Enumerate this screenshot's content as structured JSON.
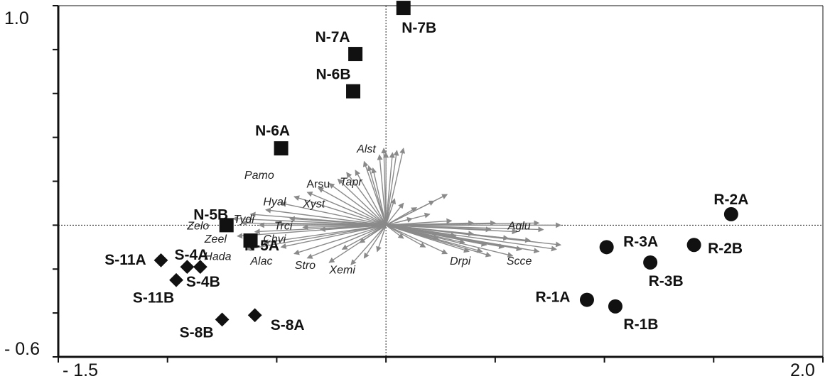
{
  "chart_data": {
    "type": "scatter",
    "title": "",
    "xlabel": "",
    "ylabel": "",
    "xlim": [
      -1.5,
      2.0
    ],
    "ylim": [
      -0.6,
      1.0
    ],
    "x_tick_labels": [
      "- 1.5",
      "2.0"
    ],
    "y_tick_labels": [
      "1.0",
      "- 0.6"
    ],
    "grid": false,
    "colors": {
      "axis": "#111111",
      "points": "#111111",
      "arrows": "#8a8a8a"
    },
    "groups": [
      {
        "marker": "square",
        "points": [
          {
            "label": "N-7B",
            "x": 0.08,
            "y": 0.99
          },
          {
            "label": "N-7A",
            "x": -0.14,
            "y": 0.78
          },
          {
            "label": "N-6B",
            "x": -0.15,
            "y": 0.61
          },
          {
            "label": "N-6A",
            "x": -0.48,
            "y": 0.35
          },
          {
            "label": "N-5B",
            "x": -0.73,
            "y": 0.0
          },
          {
            "label": "N-5A",
            "x": -0.62,
            "y": -0.07
          }
        ]
      },
      {
        "marker": "circle",
        "points": [
          {
            "label": "R-2A",
            "x": 1.58,
            "y": 0.05
          },
          {
            "label": "R-2B",
            "x": 1.41,
            "y": -0.09
          },
          {
            "label": "R-3A",
            "x": 1.01,
            "y": -0.1
          },
          {
            "label": "R-3B",
            "x": 1.21,
            "y": -0.17
          },
          {
            "label": "R-1A",
            "x": 0.92,
            "y": -0.34
          },
          {
            "label": "R-1B",
            "x": 1.05,
            "y": -0.37
          }
        ]
      },
      {
        "marker": "diamond",
        "points": [
          {
            "label": "S-11A",
            "x": -1.03,
            "y": -0.16
          },
          {
            "label": "S-4A",
            "x": -0.91,
            "y": -0.19
          },
          {
            "label": "S-4B",
            "x": -0.85,
            "y": -0.19
          },
          {
            "label": "S-11B",
            "x": -0.96,
            "y": -0.25
          },
          {
            "label": "S-8B",
            "x": -0.75,
            "y": -0.43
          },
          {
            "label": "S-8A",
            "x": -0.6,
            "y": -0.41
          }
        ]
      }
    ],
    "species_labels": [
      {
        "text": "Alst",
        "x": -0.09,
        "y": 0.35,
        "italic": true
      },
      {
        "text": "Pamo",
        "x": -0.58,
        "y": 0.23,
        "italic": true
      },
      {
        "text": "Arsu",
        "x": -0.31,
        "y": 0.19,
        "italic": false
      },
      {
        "text": "Tapr",
        "x": -0.16,
        "y": 0.2,
        "italic": true
      },
      {
        "text": "Hyal",
        "x": -0.51,
        "y": 0.11,
        "italic": true
      },
      {
        "text": "Xyst",
        "x": -0.33,
        "y": 0.1,
        "italic": true
      },
      {
        "text": "Tydi",
        "x": -0.65,
        "y": 0.03,
        "italic": true
      },
      {
        "text": "Zelo",
        "x": -0.86,
        "y": 0.0,
        "italic": true
      },
      {
        "text": "Trci",
        "x": -0.47,
        "y": 0.0,
        "italic": true
      },
      {
        "text": "Aglu",
        "x": 0.61,
        "y": 0.0,
        "italic": true
      },
      {
        "text": "Zeel",
        "x": -0.78,
        "y": -0.06,
        "italic": true
      },
      {
        "text": "Chvi",
        "x": -0.51,
        "y": -0.06,
        "italic": true
      },
      {
        "text": "Hada",
        "x": -0.77,
        "y": -0.14,
        "italic": true
      },
      {
        "text": "Alac",
        "x": -0.57,
        "y": -0.16,
        "italic": true
      },
      {
        "text": "Stro",
        "x": -0.37,
        "y": -0.18,
        "italic": true
      },
      {
        "text": "Xemi",
        "x": -0.2,
        "y": -0.2,
        "italic": true
      },
      {
        "text": "Drpi",
        "x": 0.34,
        "y": -0.16,
        "italic": true
      },
      {
        "text": "Scce",
        "x": 0.61,
        "y": -0.16,
        "italic": true
      }
    ],
    "species_arrows": [
      [
        -0.01,
        0.35
      ],
      [
        0.05,
        0.34
      ],
      [
        0.08,
        0.35
      ],
      [
        0.03,
        0.33
      ],
      [
        -0.03,
        0.32
      ],
      [
        0.0,
        0.33
      ],
      [
        -0.1,
        0.29
      ],
      [
        -0.08,
        0.27
      ],
      [
        -0.06,
        0.26
      ],
      [
        -0.14,
        0.25
      ],
      [
        -0.18,
        0.24
      ],
      [
        -0.22,
        0.21
      ],
      [
        -0.26,
        0.19
      ],
      [
        -0.31,
        0.17
      ],
      [
        -0.36,
        0.15
      ],
      [
        -0.42,
        0.13
      ],
      [
        -0.48,
        0.1
      ],
      [
        -0.55,
        0.07
      ],
      [
        -0.62,
        0.05
      ],
      [
        -0.7,
        0.03
      ],
      [
        -0.66,
        0.01
      ],
      [
        -0.58,
        0.0
      ],
      [
        -0.5,
        0.01
      ],
      [
        -0.44,
        0.03
      ],
      [
        -0.38,
        -0.01
      ],
      [
        -0.3,
        -0.02
      ],
      [
        -0.6,
        -0.03
      ],
      [
        -0.68,
        -0.05
      ],
      [
        -0.56,
        -0.08
      ],
      [
        -0.48,
        -0.1
      ],
      [
        -0.64,
        -0.11
      ],
      [
        -0.42,
        -0.13
      ],
      [
        -0.36,
        -0.15
      ],
      [
        -0.26,
        -0.17
      ],
      [
        -0.16,
        -0.18
      ],
      [
        -0.1,
        -0.15
      ],
      [
        -0.04,
        -0.12
      ],
      [
        -0.2,
        -0.11
      ],
      [
        -0.12,
        -0.08
      ],
      [
        0.04,
        0.12
      ],
      [
        0.08,
        0.1
      ],
      [
        0.14,
        0.08
      ],
      [
        0.22,
        0.11
      ],
      [
        0.28,
        0.14
      ],
      [
        0.2,
        0.05
      ],
      [
        0.12,
        0.03
      ],
      [
        0.3,
        0.02
      ],
      [
        0.4,
        0.01
      ],
      [
        0.5,
        0.01
      ],
      [
        0.7,
        0.01
      ],
      [
        0.8,
        0.0
      ],
      [
        0.72,
        -0.02
      ],
      [
        0.6,
        -0.03
      ],
      [
        0.48,
        -0.02
      ],
      [
        0.4,
        -0.04
      ],
      [
        0.32,
        -0.05
      ],
      [
        0.24,
        -0.06
      ],
      [
        0.36,
        -0.08
      ],
      [
        0.46,
        -0.09
      ],
      [
        0.54,
        -0.1
      ],
      [
        0.62,
        -0.11
      ],
      [
        0.7,
        -0.12
      ],
      [
        0.78,
        -0.11
      ],
      [
        0.8,
        -0.09
      ],
      [
        0.66,
        -0.07
      ],
      [
        0.56,
        -0.06
      ],
      [
        0.44,
        -0.12
      ],
      [
        0.28,
        -0.13
      ],
      [
        0.18,
        -0.1
      ],
      [
        0.08,
        -0.06
      ],
      [
        0.48,
        -0.14
      ],
      [
        0.58,
        -0.14
      ],
      [
        0.38,
        -0.12
      ]
    ]
  }
}
